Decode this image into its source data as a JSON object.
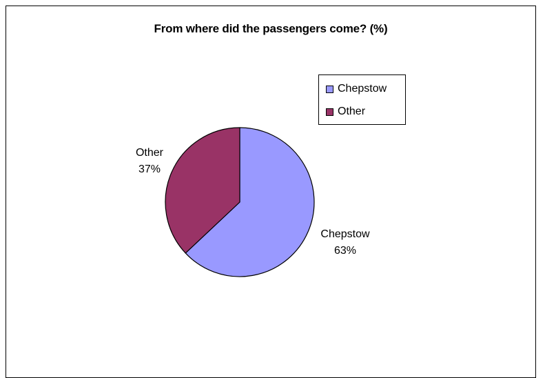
{
  "chart_data": {
    "type": "pie",
    "title": "From where did the passengers come? (%)",
    "categories": [
      "Chepstow",
      "Other"
    ],
    "values": [
      63,
      37
    ],
    "value_labels": [
      "63%",
      "37%"
    ],
    "colors": [
      "#9999ff",
      "#993366"
    ],
    "legend_position": "top-right",
    "legend": [
      "Chepstow",
      "Other"
    ]
  }
}
